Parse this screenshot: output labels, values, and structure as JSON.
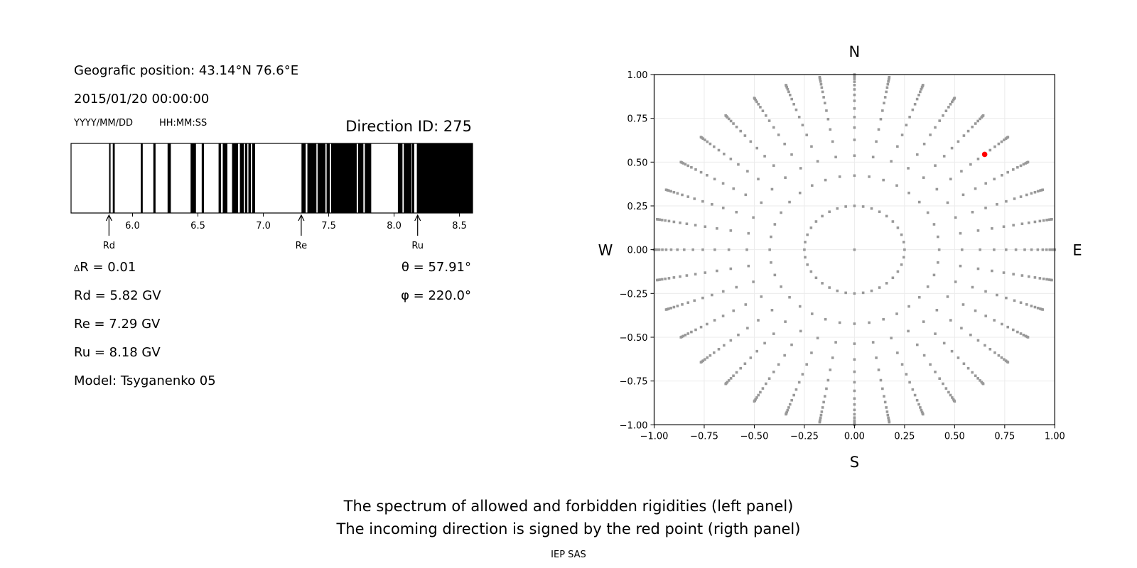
{
  "left_panel": {
    "geo_position": "Geografic position: 43.14°N 76.6°E",
    "datetime": "2015/01/20 00:00:00",
    "date_format": "YYYY/MM/DD",
    "time_format": "HH:MM:SS",
    "direction_id": "Direction ID: 275",
    "delta_r_symbol": "Δ",
    "delta_r": "R = 0.01",
    "rd": "Rd = 5.82 GV",
    "re": "Re = 7.29 GV",
    "ru": "Ru = 8.18 GV",
    "model": "Model: Tsyganenko 05",
    "theta": "θ = 57.91°",
    "phi": "φ = 220.0°"
  },
  "footer": {
    "line1": "The spectrum of allowed and forbidden rigidities (left panel)",
    "line2": "The incoming direction is signed by the red point (rigth panel)",
    "credit": "IEP SAS"
  },
  "chart_data": [
    {
      "type": "bar",
      "description_role": "rigidity spectrum strip (black = forbidden, white = allowed)",
      "xlim": [
        5.53,
        8.6
      ],
      "xticks": [
        6.0,
        6.5,
        7.0,
        7.5,
        8.0,
        8.5
      ],
      "xtick_labels": [
        "6.0",
        "6.5",
        "7.0",
        "7.5",
        "8.0",
        "8.5"
      ],
      "forbidden_intervals": [
        [
          5.821,
          5.832
        ],
        [
          5.849,
          5.864
        ],
        [
          6.063,
          6.078
        ],
        [
          6.159,
          6.176
        ],
        [
          6.268,
          6.293
        ],
        [
          6.444,
          6.485
        ],
        [
          6.529,
          6.546
        ],
        [
          6.658,
          6.676
        ],
        [
          6.69,
          6.725
        ],
        [
          6.761,
          6.807
        ],
        [
          6.821,
          6.851
        ],
        [
          6.86,
          6.878
        ],
        [
          6.886,
          6.905
        ],
        [
          6.915,
          6.937
        ],
        [
          7.292,
          7.324
        ],
        [
          7.337,
          7.406
        ],
        [
          7.415,
          7.475
        ],
        [
          7.484,
          7.508
        ],
        [
          7.518,
          7.714
        ],
        [
          7.725,
          7.765
        ],
        [
          7.776,
          7.825
        ],
        [
          8.029,
          8.064
        ],
        [
          8.074,
          8.134
        ],
        [
          8.138,
          8.154
        ],
        [
          8.174,
          8.6
        ]
      ],
      "markers": [
        {
          "label": "Rd",
          "value": 5.82
        },
        {
          "label": "Re",
          "value": 7.29
        },
        {
          "label": "Ru",
          "value": 8.18
        }
      ]
    },
    {
      "type": "scatter",
      "xlim": [
        -1,
        1
      ],
      "ylim": [
        -1,
        1
      ],
      "ticks": [
        -1,
        -0.75,
        -0.5,
        -0.25,
        0,
        0.25,
        0.5,
        0.75,
        1
      ],
      "tick_labels": [
        "−1.00",
        "−0.75",
        "−0.50",
        "−0.25",
        "0.00",
        "0.25",
        "0.50",
        "0.75",
        "1.00"
      ],
      "grid": true,
      "compass": {
        "top": "N",
        "bottom": "S",
        "left": "W",
        "right": "E"
      },
      "point_color": "#999999",
      "highlight_color": "#ff0000",
      "center_point": [
        0,
        0
      ],
      "inner_ring": {
        "radius": 0.25,
        "angle_step_deg": 10
      },
      "spokes": {
        "angle_step_deg": 10,
        "radii": [
          0.423,
          0.537,
          0.627,
          0.697,
          0.757,
          0.806,
          0.85,
          0.884,
          0.915,
          0.94,
          0.959,
          0.975,
          0.987,
          0.995,
          1.0
        ]
      },
      "highlight_point": [
        0.65,
        0.544
      ]
    }
  ]
}
